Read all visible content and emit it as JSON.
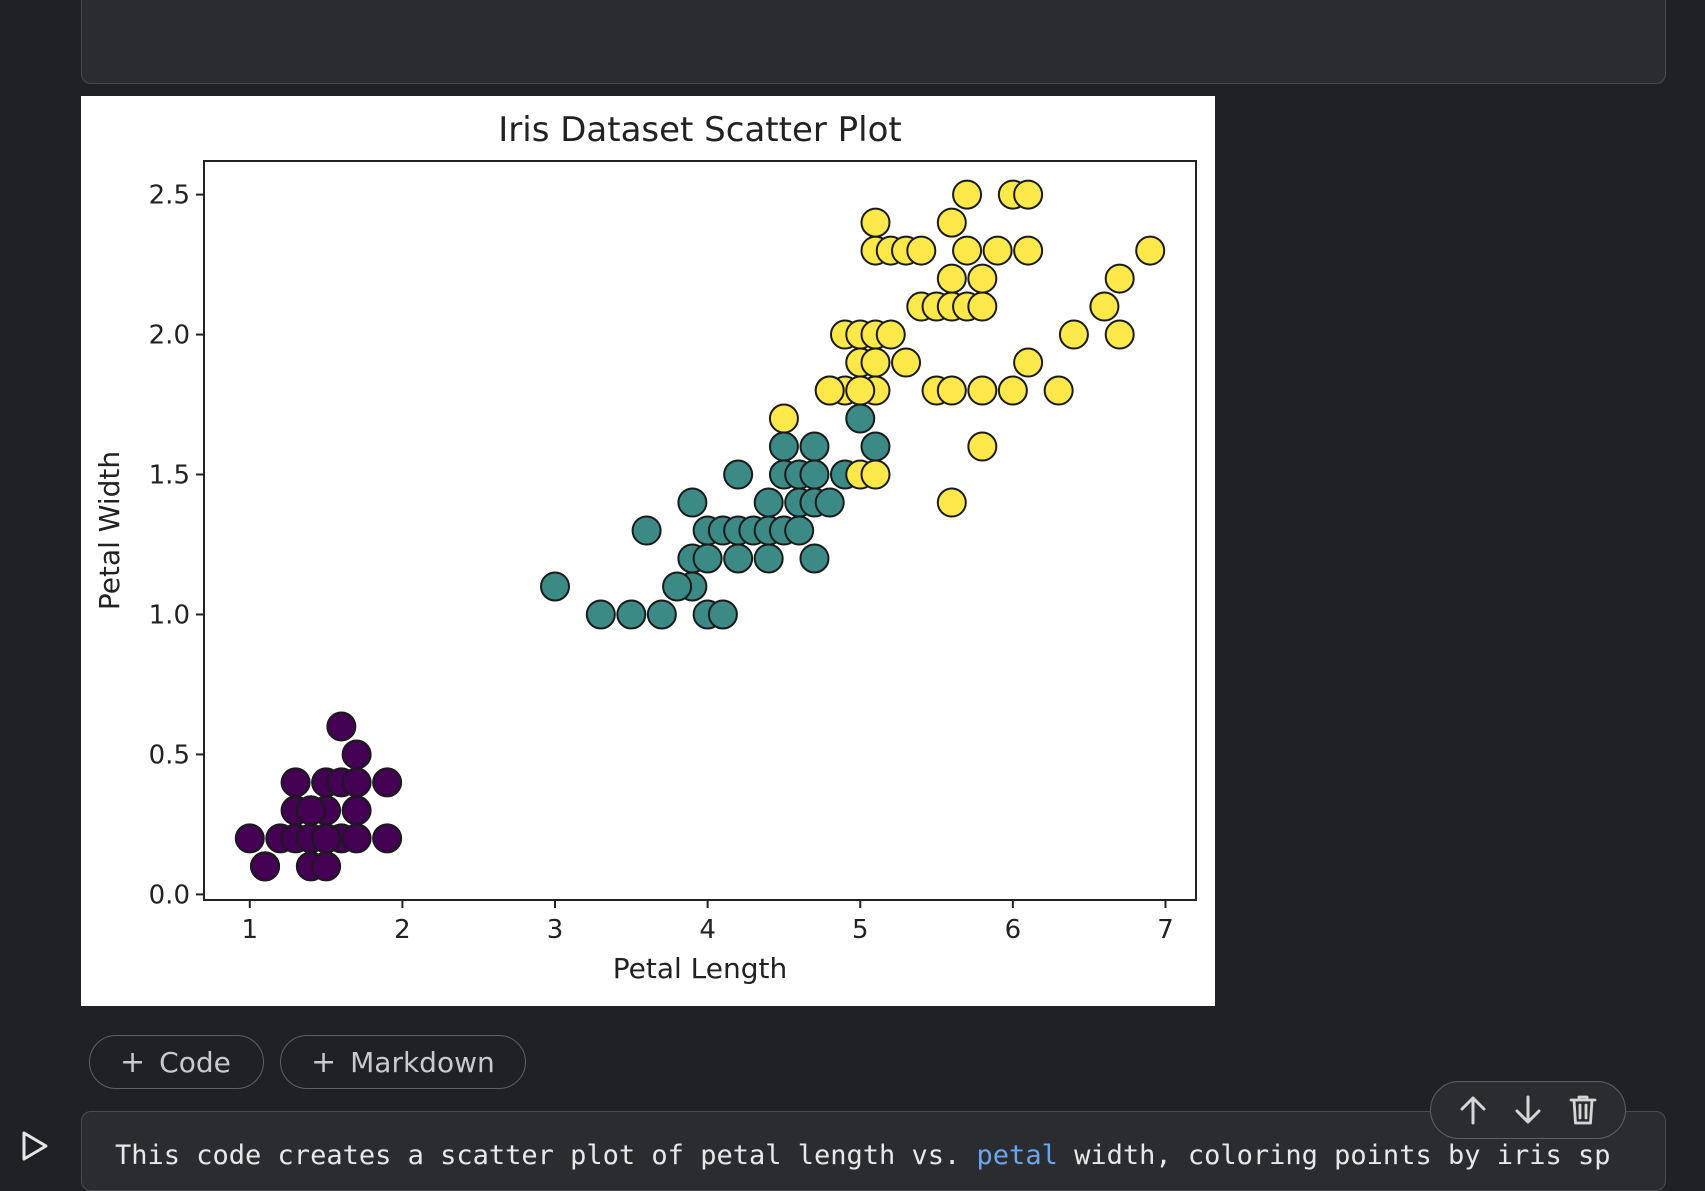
{
  "output": {
    "chart_data": {
      "type": "scatter",
      "title": "Iris Dataset Scatter Plot",
      "xlabel": "Petal Length",
      "ylabel": "Petal Width",
      "xlim": [
        0.7,
        7.2
      ],
      "ylim": [
        -0.02,
        2.62
      ],
      "xticks": [
        1,
        2,
        3,
        4,
        5,
        6,
        7
      ],
      "yticks": [
        "0.0",
        "0.5",
        "1.0",
        "1.5",
        "2.0",
        "2.5"
      ],
      "grid": false,
      "colors": [
        "#440154",
        "#3b8a85",
        "#fde84a"
      ],
      "series": [
        {
          "color": "#440154",
          "x": [
            1.0,
            1.1,
            1.2,
            1.3,
            1.4,
            1.5,
            1.6,
            1.7,
            1.9,
            1.3,
            1.4,
            1.5,
            1.7,
            1.3,
            1.5,
            1.6,
            1.7,
            1.9,
            1.7,
            1.6,
            1.1,
            1.4,
            1.5,
            1.4,
            1.5
          ],
          "y": [
            0.2,
            0.1,
            0.2,
            0.2,
            0.2,
            0.2,
            0.2,
            0.2,
            0.2,
            0.3,
            0.3,
            0.3,
            0.3,
            0.4,
            0.4,
            0.4,
            0.4,
            0.4,
            0.5,
            0.6,
            0.1,
            0.1,
            0.1,
            0.3,
            0.2
          ]
        },
        {
          "color": "#3b8a85",
          "x": [
            3.0,
            3.3,
            3.5,
            3.7,
            4.0,
            4.1,
            3.9,
            3.8,
            3.9,
            4.0,
            4.2,
            4.4,
            4.7,
            3.6,
            4.0,
            4.1,
            4.2,
            4.3,
            4.4,
            4.5,
            4.6,
            3.9,
            4.4,
            4.6,
            4.7,
            4.8,
            4.2,
            4.5,
            4.6,
            4.7,
            4.9,
            4.5,
            4.7,
            5.1,
            5.0
          ],
          "y": [
            1.1,
            1.0,
            1.0,
            1.0,
            1.0,
            1.0,
            1.1,
            1.1,
            1.2,
            1.2,
            1.2,
            1.2,
            1.2,
            1.3,
            1.3,
            1.3,
            1.3,
            1.3,
            1.3,
            1.3,
            1.3,
            1.4,
            1.4,
            1.4,
            1.4,
            1.4,
            1.5,
            1.5,
            1.5,
            1.5,
            1.5,
            1.6,
            1.6,
            1.6,
            1.7
          ]
        },
        {
          "color": "#fde84a",
          "x": [
            5.6,
            5.8,
            5.0,
            5.1,
            4.5,
            4.8,
            4.9,
            5.1,
            5.5,
            5.6,
            5.8,
            6.0,
            6.3,
            5.0,
            5.1,
            5.3,
            6.1,
            4.9,
            5.0,
            5.1,
            5.2,
            6.4,
            6.7,
            5.4,
            5.5,
            5.6,
            5.7,
            5.8,
            6.6,
            5.6,
            5.8,
            6.7,
            5.1,
            5.2,
            5.3,
            5.4,
            5.7,
            5.9,
            6.1,
            6.9,
            5.1,
            5.6,
            5.7,
            6.0,
            6.1,
            4.8,
            5.0
          ],
          "y": [
            1.4,
            1.6,
            1.5,
            1.5,
            1.7,
            1.8,
            1.8,
            1.8,
            1.8,
            1.8,
            1.8,
            1.8,
            1.8,
            1.9,
            1.9,
            1.9,
            1.9,
            2.0,
            2.0,
            2.0,
            2.0,
            2.0,
            2.0,
            2.1,
            2.1,
            2.1,
            2.1,
            2.1,
            2.1,
            2.2,
            2.2,
            2.2,
            2.3,
            2.3,
            2.3,
            2.3,
            2.3,
            2.3,
            2.3,
            2.3,
            2.4,
            2.4,
            2.5,
            2.5,
            2.5,
            1.8,
            1.8
          ]
        }
      ]
    }
  },
  "buttons": {
    "add_code": "Code",
    "add_markdown": "Markdown"
  },
  "next_cell": {
    "text_before": "This code creates a scatter plot of petal length vs. ",
    "text_highlight": "petal",
    "text_after": " width, coloring points by iris sp"
  },
  "icons": {
    "run": "play-icon",
    "move_up": "arrow-up-icon",
    "move_down": "arrow-down-icon",
    "delete": "trash-icon",
    "add": "plus-icon"
  }
}
